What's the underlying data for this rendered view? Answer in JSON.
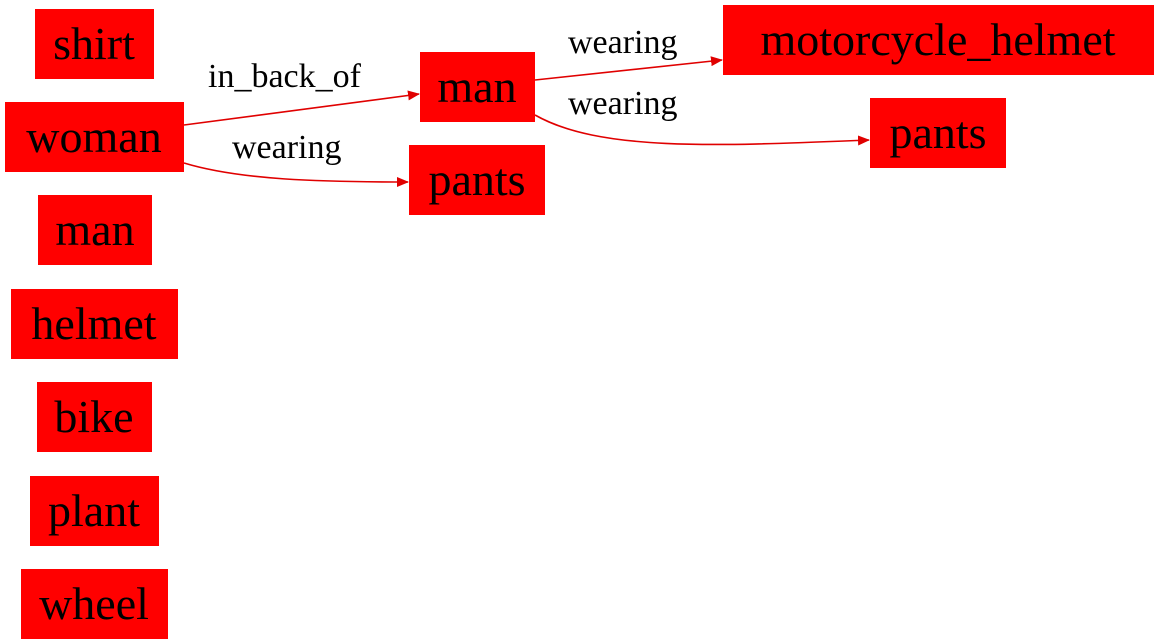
{
  "colors": {
    "node_fill": "#ff0000",
    "edge": "#e00000",
    "text": "#000000",
    "background": "#ffffff"
  },
  "nodes": [
    {
      "id": "shirt",
      "label": "shirt"
    },
    {
      "id": "woman",
      "label": "woman"
    },
    {
      "id": "man_left",
      "label": "man"
    },
    {
      "id": "helmet",
      "label": "helmet"
    },
    {
      "id": "bike",
      "label": "bike"
    },
    {
      "id": "plant",
      "label": "plant"
    },
    {
      "id": "wheel",
      "label": "wheel"
    },
    {
      "id": "man_mid",
      "label": "man"
    },
    {
      "id": "pants_mid",
      "label": "pants"
    },
    {
      "id": "motorcycle_helmet",
      "label": "motorcycle_helmet"
    },
    {
      "id": "pants_right",
      "label": "pants"
    }
  ],
  "edges": [
    {
      "from": "woman",
      "to": "man_mid",
      "label": "in_back_of"
    },
    {
      "from": "woman",
      "to": "pants_mid",
      "label": "wearing"
    },
    {
      "from": "man_mid",
      "to": "motorcycle_helmet",
      "label": "wearing"
    },
    {
      "from": "man_mid",
      "to": "pants_right",
      "label": "wearing"
    }
  ]
}
